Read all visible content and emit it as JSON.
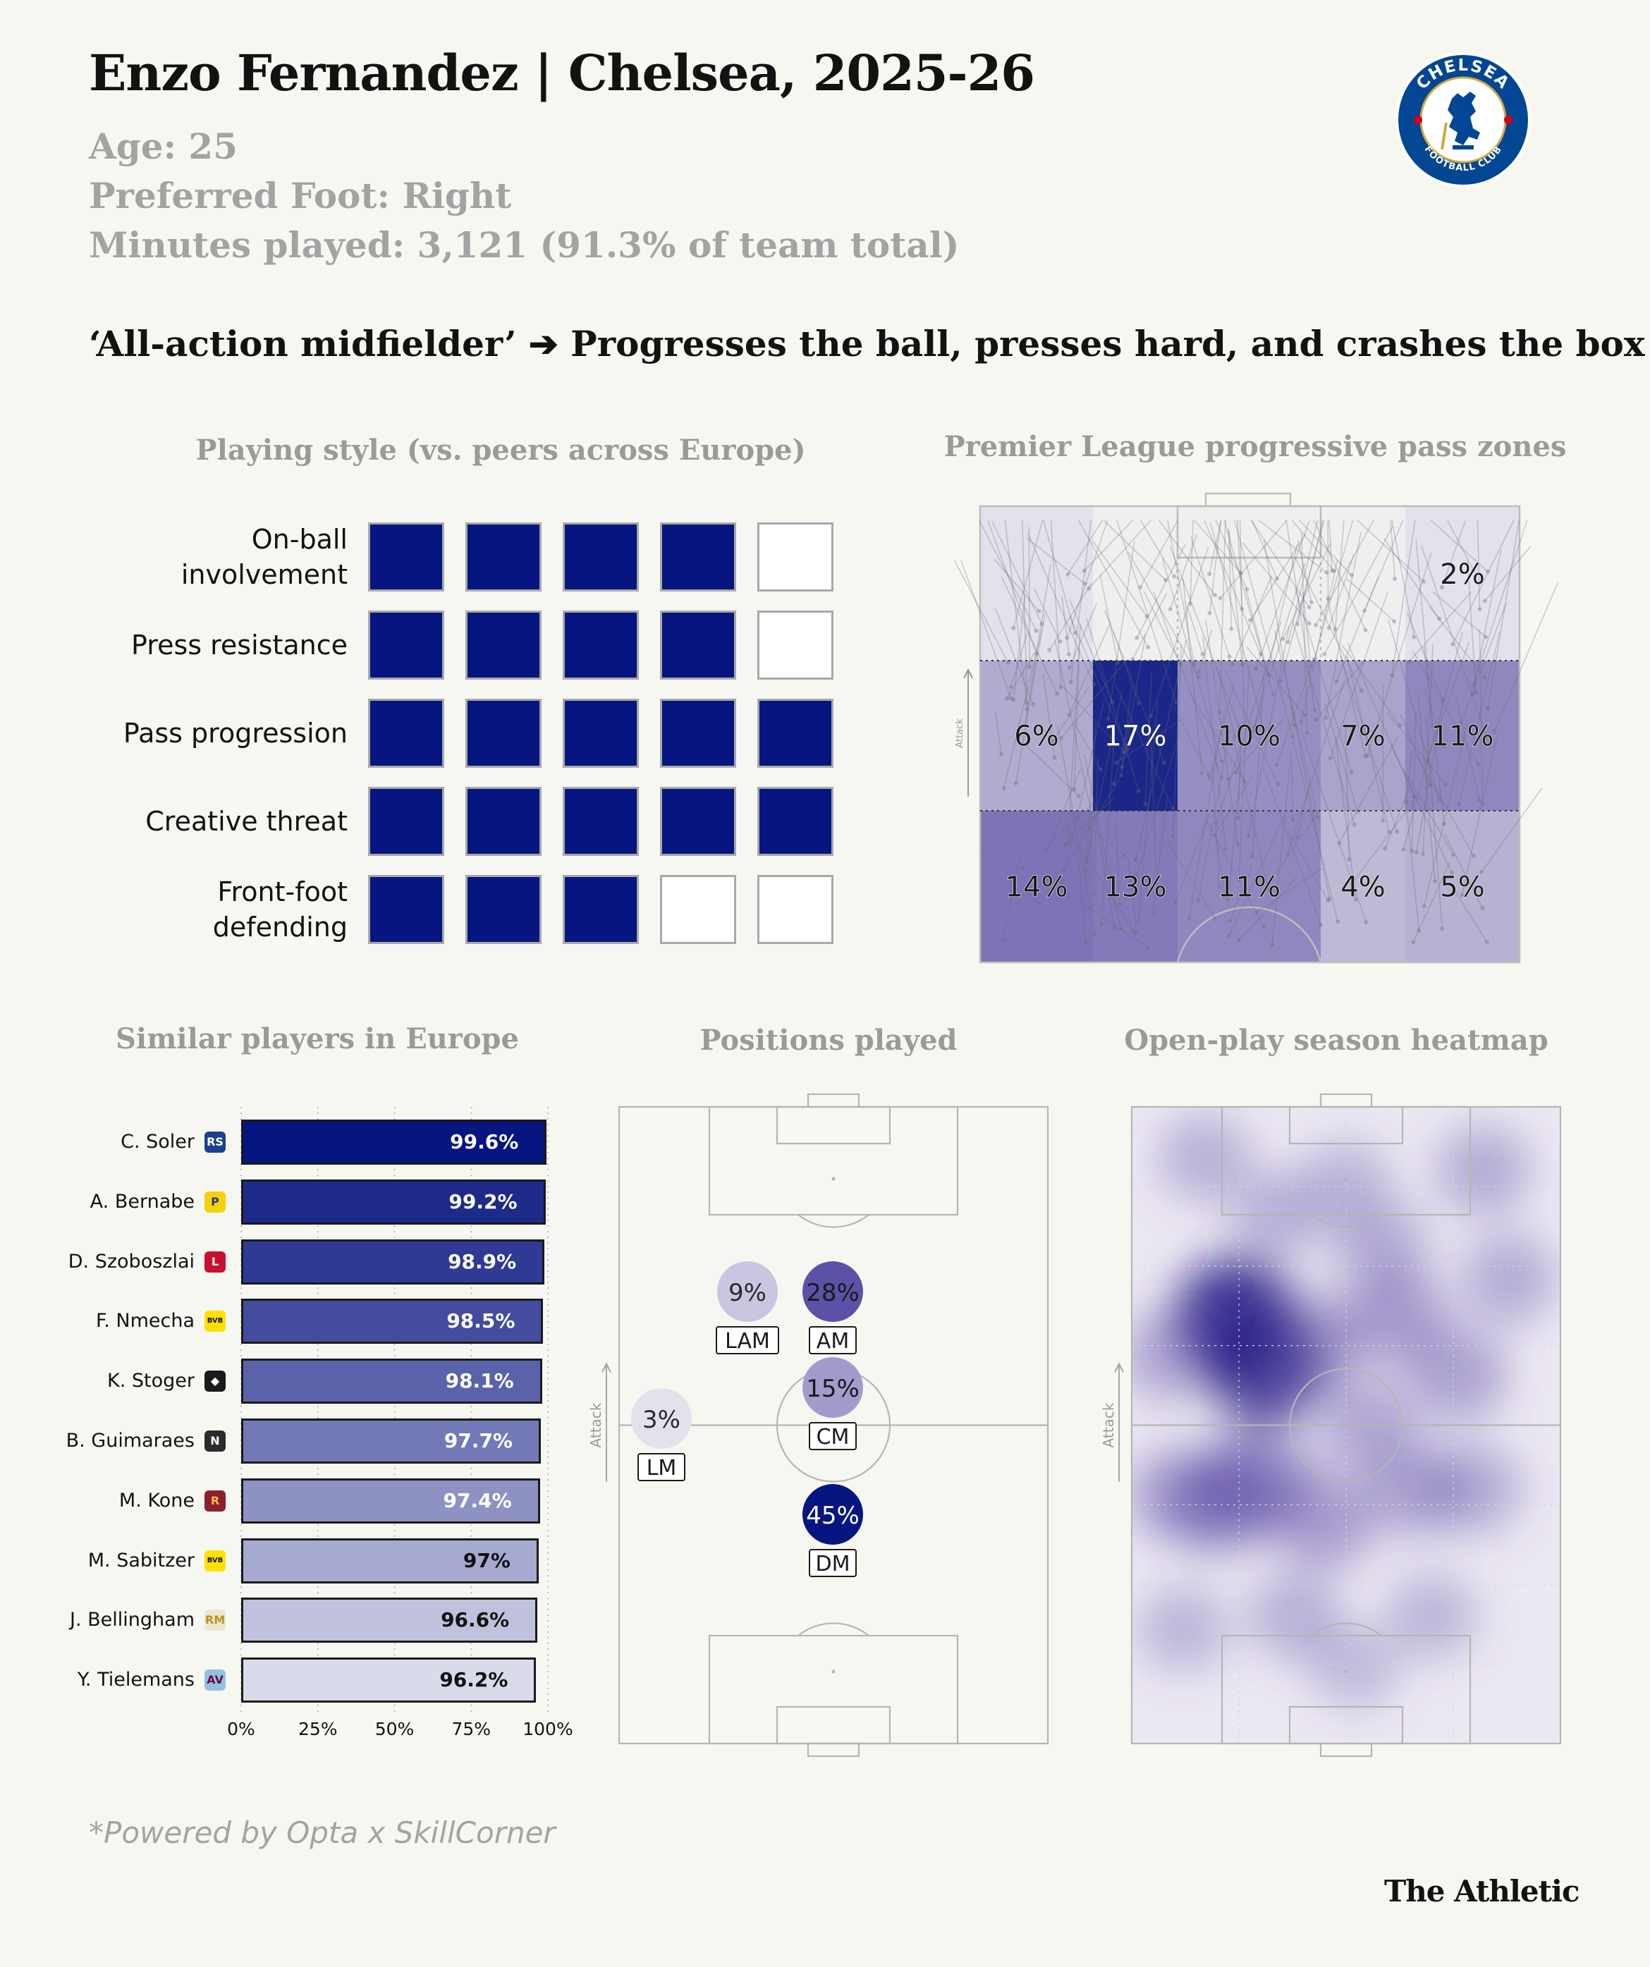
{
  "header": {
    "title": "Enzo Fernandez | Chelsea, 2025-26",
    "age": "Age: 25",
    "foot": "Preferred Foot: Right",
    "minutes": "Minutes played: 3,121 (91.3% of team total)",
    "archetype": "‘All-action midfielder’ ➔ Progresses the ball, presses hard, and crashes the box",
    "crest_top": "CHELSEA",
    "crest_bottom": "FOOTBALL CLUB"
  },
  "colors": {
    "navy": "#061580",
    "purple": "#5a4ca4",
    "grid": "#a8a8a8",
    "background": "#f7f7f2"
  },
  "chart_data": [
    {
      "type": "table",
      "title": "Playing style (vs. peers across Europe)",
      "max_score": 5,
      "rows": [
        {
          "label_lines": [
            "On-ball",
            "involvement"
          ],
          "score": 4
        },
        {
          "label_lines": [
            "Press resistance"
          ],
          "score": 4
        },
        {
          "label_lines": [
            "Pass progression"
          ],
          "score": 5
        },
        {
          "label_lines": [
            "Creative threat"
          ],
          "score": 5
        },
        {
          "label_lines": [
            "Front-foot",
            "defending"
          ],
          "score": 3
        }
      ]
    },
    {
      "type": "heatmap",
      "title": "Premier League progressive pass zones",
      "axis_label": "Attack",
      "zones": [
        [
          null,
          null,
          null,
          null,
          "2%"
        ],
        [
          "6%",
          "17%",
          "10%",
          "7%",
          "11%"
        ],
        [
          "14%",
          "13%",
          "11%",
          "4%",
          "5%"
        ]
      ],
      "values": [
        [
          0,
          0,
          0,
          0,
          2
        ],
        [
          6,
          17,
          10,
          7,
          11
        ],
        [
          14,
          13,
          11,
          4,
          5
        ]
      ]
    },
    {
      "type": "bar",
      "title": "Similar players in Europe",
      "categories": [
        "C. Soler",
        "A. Bernabe",
        "D. Szoboszlai",
        "F. Nmecha",
        "K. Stoger",
        "B. Guimaraes",
        "M. Kone",
        "M. Sabitzer",
        "J. Bellingham",
        "Y. Tielemans"
      ],
      "values": [
        99.6,
        99.2,
        98.9,
        98.5,
        98.1,
        97.7,
        97.4,
        97,
        96.6,
        96.2
      ],
      "labels": [
        "99.6%",
        "99.2%",
        "98.9%",
        "98.5%",
        "98.1%",
        "97.7%",
        "97.4%",
        "97%",
        "96.6%",
        "96.2%"
      ],
      "badges": [
        {
          "text": "RS",
          "bg": "#1c3f8f",
          "fg": "#ffffff"
        },
        {
          "text": "P",
          "bg": "#f5d10a",
          "fg": "#1c3f8f"
        },
        {
          "text": "L",
          "bg": "#c8102e",
          "fg": "#ffffff"
        },
        {
          "text": "BVB",
          "bg": "#fde100",
          "fg": "#111111"
        },
        {
          "text": "◆",
          "bg": "#1a1a1a",
          "fg": "#ffffff"
        },
        {
          "text": "N",
          "bg": "#2b2b2b",
          "fg": "#ffffff"
        },
        {
          "text": "R",
          "bg": "#8e1f2f",
          "fg": "#f0bc42"
        },
        {
          "text": "BVB",
          "bg": "#fde100",
          "fg": "#111111"
        },
        {
          "text": "RM",
          "bg": "#ece7d0",
          "fg": "#b8941e"
        },
        {
          "text": "AV",
          "bg": "#95bfe5",
          "fg": "#670e36"
        }
      ],
      "xticks": [
        "0%",
        "25%",
        "50%",
        "75%",
        "100%"
      ],
      "xlim": [
        0,
        100
      ]
    },
    {
      "type": "scatter",
      "title": "Positions played",
      "axis_label": "Attack",
      "positions": [
        {
          "code": "LAM",
          "value": 9,
          "label": "9%",
          "fill": "#c9c6e2",
          "text_color": "#2a2a2a"
        },
        {
          "code": "AM",
          "value": 28,
          "label": "28%",
          "fill": "#5b52a8",
          "text_color": "#1a1a1a"
        },
        {
          "code": "CM",
          "value": 15,
          "label": "15%",
          "fill": "#a29ccd",
          "text_color": "#1a1a1a"
        },
        {
          "code": "LM",
          "value": 3,
          "label": "3%",
          "fill": "#e3e2ec",
          "text_color": "#2a2a2a"
        },
        {
          "code": "DM",
          "value": 45,
          "label": "45%",
          "fill": "#061580",
          "text_color": "#ffffff"
        }
      ]
    },
    {
      "type": "heatmap",
      "title": "Open-play season heatmap",
      "axis_label": "Attack",
      "blobs": [
        {
          "x": 0.24,
          "y": 0.33,
          "weight": 1.0
        },
        {
          "x": 0.31,
          "y": 0.41,
          "weight": 0.9
        },
        {
          "x": 0.2,
          "y": 0.62,
          "weight": 0.6
        },
        {
          "x": 0.29,
          "y": 0.59,
          "weight": 0.7
        },
        {
          "x": 0.42,
          "y": 0.37,
          "weight": 0.5
        },
        {
          "x": 0.62,
          "y": 0.33,
          "weight": 0.45
        },
        {
          "x": 0.76,
          "y": 0.42,
          "weight": 0.4
        },
        {
          "x": 0.66,
          "y": 0.6,
          "weight": 0.4
        },
        {
          "x": 0.8,
          "y": 0.6,
          "weight": 0.3
        },
        {
          "x": 0.45,
          "y": 0.65,
          "weight": 0.45
        },
        {
          "x": 0.55,
          "y": 0.5,
          "weight": 0.35
        },
        {
          "x": 0.09,
          "y": 0.39,
          "weight": 0.35
        },
        {
          "x": 0.1,
          "y": 0.61,
          "weight": 0.35
        },
        {
          "x": 0.17,
          "y": 0.08,
          "weight": 0.25
        },
        {
          "x": 0.82,
          "y": 0.1,
          "weight": 0.3
        },
        {
          "x": 0.5,
          "y": 0.12,
          "weight": 0.2
        },
        {
          "x": 0.38,
          "y": 0.8,
          "weight": 0.25
        },
        {
          "x": 0.7,
          "y": 0.8,
          "weight": 0.2
        },
        {
          "x": 0.12,
          "y": 0.82,
          "weight": 0.2
        },
        {
          "x": 0.58,
          "y": 0.22,
          "weight": 0.3
        },
        {
          "x": 0.88,
          "y": 0.27,
          "weight": 0.3
        },
        {
          "x": 0.34,
          "y": 0.17,
          "weight": 0.25
        },
        {
          "x": 0.52,
          "y": 0.88,
          "weight": 0.15
        }
      ]
    }
  ],
  "footer": {
    "credit": "*Powered by Opta x SkillCorner",
    "brand": "The Athletic"
  }
}
